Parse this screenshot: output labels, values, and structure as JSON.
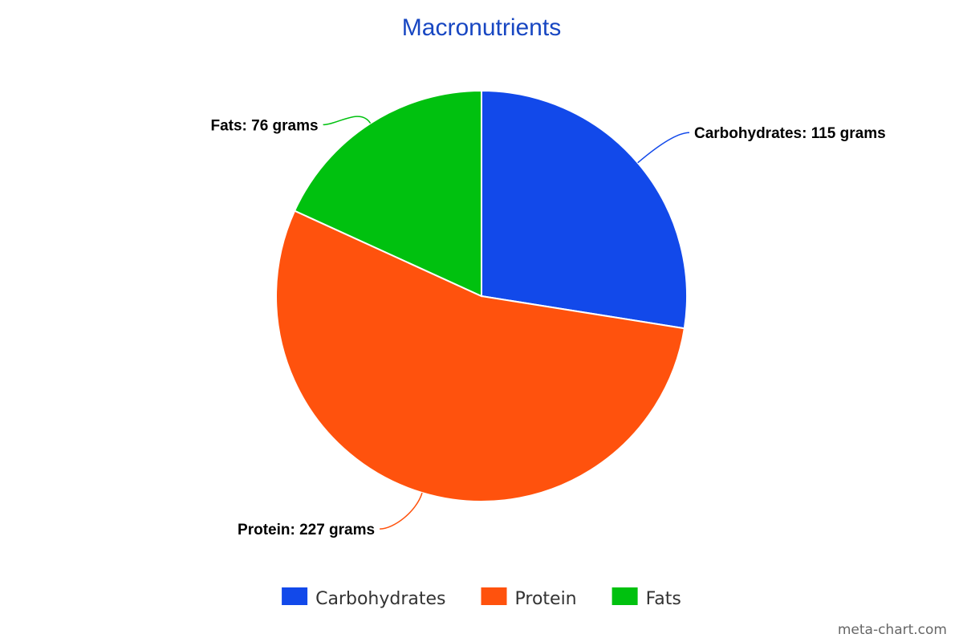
{
  "chart_data": {
    "type": "pie",
    "title": "Macronutrients",
    "title_color": "#1847c2",
    "slices": [
      {
        "name": "Carbohydrates",
        "value": 115,
        "label": "Carbohydrates: 115 grams",
        "color": "#1249ea"
      },
      {
        "name": "Protein",
        "value": 227,
        "label": "Protein: 227 grams",
        "color": "#ff520d"
      },
      {
        "name": "Fats",
        "value": 76,
        "label": "Fats: 76 grams",
        "color": "#00c10f"
      }
    ],
    "legend_position": "bottom"
  },
  "credit": "meta-chart.com"
}
